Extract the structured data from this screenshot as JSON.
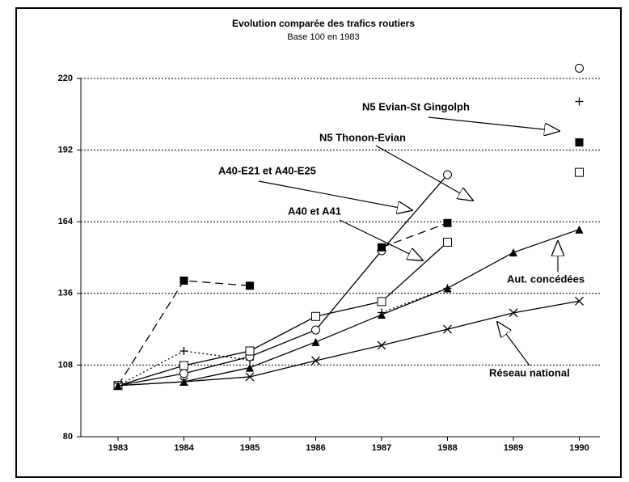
{
  "chart_data": {
    "type": "line",
    "title": "Evolution comparée des trafics routiers",
    "subtitle": "Base 100 en 1983",
    "categories": [
      "1983",
      "1984",
      "1985",
      "1986",
      "1987",
      "1988",
      "1989",
      "1990"
    ],
    "ylim": [
      80,
      220
    ],
    "yticks": [
      80,
      108,
      136,
      164,
      192,
      220
    ],
    "grid": true,
    "series": [
      {
        "name": "N5 Evian-St Gingolph",
        "color": "#000000",
        "marker": "plus",
        "dash": "dotted",
        "values": [
          100,
          113.5,
          110,
          null,
          128.5,
          138,
          null,
          211
        ]
      },
      {
        "name": "N5 Thonon-Evian",
        "color": "#000000",
        "marker": "circle",
        "dash": "solid",
        "values": [
          100,
          104.7,
          111.3,
          121.7,
          152.7,
          182.4,
          null,
          224
        ]
      },
      {
        "name": "A40-E21 et A40-E25",
        "color": "#000000",
        "marker": "filled-square",
        "dash": "dashed",
        "values": [
          100,
          141,
          139,
          null,
          154,
          163.5,
          null,
          195
        ]
      },
      {
        "name": "A40 et A41",
        "color": "#000000",
        "marker": "square",
        "dash": "solid",
        "values": [
          100,
          107.8,
          113.5,
          127,
          132.8,
          156,
          null,
          183.3
        ]
      },
      {
        "name": "Aut. concédées",
        "color": "#000000",
        "marker": "triangle",
        "dash": "solid",
        "values": [
          100,
          101.5,
          107,
          117,
          127.7,
          138,
          152,
          161
        ]
      },
      {
        "name": "Réseau national",
        "color": "#000000",
        "marker": "cross",
        "dash": "solid",
        "values": [
          100,
          101.5,
          103.4,
          109.7,
          115.7,
          122,
          128.4,
          133
        ]
      }
    ]
  }
}
